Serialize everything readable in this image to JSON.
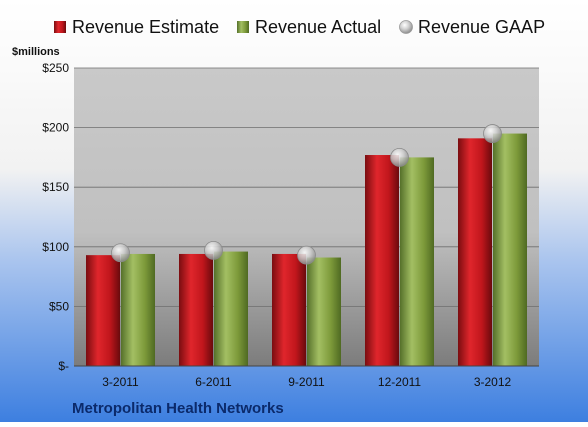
{
  "chart_data": {
    "type": "bar",
    "title": "",
    "ylabel": "$millions",
    "xlabel": "",
    "company": "Metropolitan Health Networks",
    "categories": [
      "3-2011",
      "6-2011",
      "9-2011",
      "12-2011",
      "3-2012"
    ],
    "ylim": [
      0,
      250
    ],
    "y_ticks": [
      {
        "value": 0,
        "label": "$-"
      },
      {
        "value": 50,
        "label": "$50"
      },
      {
        "value": 100,
        "label": "$100"
      },
      {
        "value": 150,
        "label": "$150"
      },
      {
        "value": 200,
        "label": "$200"
      },
      {
        "value": 250,
        "label": "$250"
      }
    ],
    "grid": true,
    "legend_position": "top",
    "series": [
      {
        "name": "Revenue Estimate",
        "kind": "bar",
        "color": "#c0161c",
        "values": [
          93,
          94,
          94,
          177,
          191
        ]
      },
      {
        "name": "Revenue Actual",
        "kind": "bar",
        "color": "#7d9a3a",
        "values": [
          94,
          96,
          91,
          175,
          195
        ]
      },
      {
        "name": "Revenue GAAP",
        "kind": "marker",
        "color": "#b8b8b8",
        "values": [
          95,
          97,
          93,
          175,
          195
        ]
      }
    ]
  }
}
